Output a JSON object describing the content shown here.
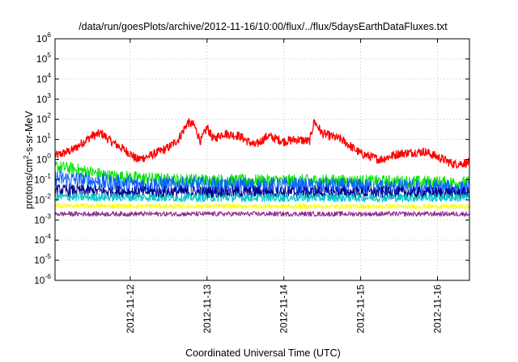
{
  "chart_data": {
    "type": "line",
    "title": "/data/run/goesPlots/archive/2012-11-16/10:00/flux/../flux/5daysEarthDataFluxes.txt",
    "xlabel": "Coordinated Universal Time (UTC)",
    "ylabel": {
      "prefix": "protons/cm",
      "sup": "2",
      "suffix": "-s-sr-MeV"
    },
    "y_scale": "log",
    "ylim": [
      1e-06,
      1000000.0
    ],
    "y_ticks": [
      {
        "base": "10",
        "exp": "-6",
        "value": 1e-06
      },
      {
        "base": "10",
        "exp": "-5",
        "value": 1e-05
      },
      {
        "base": "10",
        "exp": "-4",
        "value": 0.0001
      },
      {
        "base": "10",
        "exp": "-3",
        "value": 0.001
      },
      {
        "base": "10",
        "exp": "-2",
        "value": 0.01
      },
      {
        "base": "10",
        "exp": "-1",
        "value": 0.1
      },
      {
        "base": "10",
        "exp": "0",
        "value": 1
      },
      {
        "base": "10",
        "exp": "1",
        "value": 10
      },
      {
        "base": "10",
        "exp": "2",
        "value": 100
      },
      {
        "base": "10",
        "exp": "3",
        "value": 1000
      },
      {
        "base": "10",
        "exp": "4",
        "value": 10000
      },
      {
        "base": "10",
        "exp": "5",
        "value": 100000
      },
      {
        "base": "10",
        "exp": "6",
        "value": 1000000
      }
    ],
    "xlim": [
      "2012-11-11 00:30",
      "2012-11-16 10:00"
    ],
    "x_ticks": [
      "2012-11-12",
      "2012-11-13",
      "2012-11-14",
      "2012-11-15",
      "2012-11-16"
    ],
    "grid": true,
    "series": [
      {
        "color": "#ff0000",
        "noise": 0.22,
        "x": [
          "2012-11-11 00:30",
          "2012-11-11 06:00",
          "2012-11-11 12:00",
          "2012-11-11 15:00",
          "2012-11-11 18:00",
          "2012-11-12 00:00",
          "2012-11-12 02:00",
          "2012-11-12 06:00",
          "2012-11-12 12:00",
          "2012-11-12 15:00",
          "2012-11-12 18:00",
          "2012-11-12 20:00",
          "2012-11-12 22:00",
          "2012-11-13 00:00",
          "2012-11-13 02:00",
          "2012-11-13 05:00",
          "2012-11-13 10:00",
          "2012-11-13 15:00",
          "2012-11-13 19:00",
          "2012-11-14 00:00",
          "2012-11-14 04:00",
          "2012-11-14 08:00",
          "2012-11-14 09:30",
          "2012-11-14 12:00",
          "2012-11-14 18:00",
          "2012-11-15 00:00",
          "2012-11-15 06:00",
          "2012-11-15 12:00",
          "2012-11-15 20:00",
          "2012-11-16 02:00",
          "2012-11-16 05:00",
          "2012-11-16 10:00"
        ],
        "y": [
          1.5,
          3,
          15,
          20,
          8,
          2,
          1,
          1.5,
          4,
          10,
          70,
          50,
          8,
          40,
          10,
          20,
          15,
          5,
          15,
          8,
          10,
          8,
          80,
          20,
          10,
          2,
          1,
          2,
          2.5,
          1,
          0.6,
          0.7
        ]
      },
      {
        "color": "#00e600",
        "noise": 0.32,
        "x": [
          "2012-11-11 00:30",
          "2012-11-11 06:00",
          "2012-11-11 18:00",
          "2012-11-12 12:00",
          "2012-11-13 12:00",
          "2012-11-14 12:00",
          "2012-11-15 12:00",
          "2012-11-16 10:00"
        ],
        "y": [
          0.45,
          0.35,
          0.15,
          0.1,
          0.09,
          0.09,
          0.08,
          0.07
        ]
      },
      {
        "color": "#0a5fff",
        "noise": 0.42,
        "x": [
          "2012-11-11 00:30",
          "2012-11-12 00:00",
          "2012-11-13 12:00",
          "2012-11-15 00:00",
          "2012-11-16 10:00"
        ],
        "y": [
          0.12,
          0.06,
          0.05,
          0.045,
          0.035
        ]
      },
      {
        "color": "#00008b",
        "noise": 0.3,
        "x": [
          "2012-11-11 00:30",
          "2012-11-12 00:00",
          "2012-11-14 00:00",
          "2012-11-16 10:00"
        ],
        "y": [
          0.03,
          0.025,
          0.024,
          0.022
        ]
      },
      {
        "color": "#00c8c8",
        "noise": 0.22,
        "x": [
          "2012-11-11 00:30",
          "2012-11-13 00:00",
          "2012-11-16 10:00"
        ],
        "y": [
          0.014,
          0.013,
          0.013
        ]
      },
      {
        "color": "#ffff00",
        "noise": 0.12,
        "x": [
          "2012-11-11 00:30",
          "2012-11-13 00:00",
          "2012-11-16 10:00"
        ],
        "y": [
          0.005,
          0.0048,
          0.0046
        ]
      },
      {
        "color": "#8b2a8b",
        "noise": 0.12,
        "x": [
          "2012-11-11 00:30",
          "2012-11-13 00:00",
          "2012-11-16 10:00"
        ],
        "y": [
          0.002,
          0.002,
          0.002
        ]
      }
    ]
  }
}
